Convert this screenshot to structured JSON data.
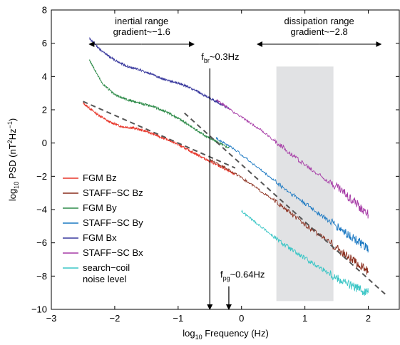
{
  "chart_data": {
    "type": "line",
    "xlabel": "log10 Frequency (Hz)",
    "ylabel": "log10 PSD (nT2Hz−1)",
    "xlim": [
      -3,
      2.5
    ],
    "ylim": [
      -10,
      8
    ],
    "x_ticks": [
      -3,
      -2,
      -1,
      0,
      1,
      2
    ],
    "y_ticks": [
      -10,
      -8,
      -6,
      -4,
      -2,
      0,
      2,
      4,
      6,
      8
    ],
    "x_tick_labels": [
      "−3",
      "−2",
      "−1",
      "0",
      "1",
      "2"
    ],
    "y_tick_labels": [
      "−10",
      "−8",
      "−6",
      "−4",
      "−2",
      "0",
      "2",
      "4",
      "6",
      "8"
    ],
    "grid": false,
    "legend_position": "lower-left",
    "series": [
      {
        "name": "FGM Bz",
        "color": "#e8362a",
        "x": [
          -2.5,
          -2.3,
          -2.1,
          -1.9,
          -1.7,
          -1.5,
          -1.3,
          -1.1,
          -0.9,
          -0.7,
          -0.5,
          -0.3,
          -0.1
        ],
        "y": [
          2.4,
          1.8,
          1.3,
          1.0,
          0.9,
          0.7,
          0.4,
          0.1,
          -0.3,
          -0.7,
          -1.1,
          -1.5,
          -1.9
        ]
      },
      {
        "name": "STAFF−SC Bz",
        "color": "#8a2d1c",
        "x": [
          -0.5,
          -0.2,
          0.2,
          0.6,
          1.0,
          1.4,
          1.7,
          2.0
        ],
        "y": [
          -1.0,
          -1.6,
          -2.6,
          -3.7,
          -4.9,
          -6.0,
          -6.9,
          -7.7
        ]
      },
      {
        "name": "FGM By",
        "color": "#2f8c4a",
        "x": [
          -2.4,
          -2.2,
          -2.0,
          -1.8,
          -1.6,
          -1.4,
          -1.2,
          -1.0,
          -0.8,
          -0.6,
          -0.4,
          -0.2
        ],
        "y": [
          5.0,
          3.6,
          2.9,
          2.6,
          2.4,
          2.2,
          1.9,
          1.5,
          1.0,
          0.5,
          0.1,
          -0.3
        ]
      },
      {
        "name": "STAFF−SC By",
        "color": "#1a78c2",
        "x": [
          -0.4,
          -0.1,
          0.3,
          0.7,
          1.1,
          1.5,
          1.8,
          2.0
        ],
        "y": [
          0.3,
          -0.4,
          -1.6,
          -2.8,
          -3.9,
          -5.0,
          -5.8,
          -6.4
        ]
      },
      {
        "name": "FGM Bx",
        "color": "#3a3a9e",
        "x": [
          -2.4,
          -2.2,
          -2.0,
          -1.8,
          -1.6,
          -1.4,
          -1.2,
          -1.0,
          -0.8,
          -0.6,
          -0.4,
          -0.2
        ],
        "y": [
          6.3,
          5.5,
          5.0,
          4.6,
          4.4,
          4.1,
          3.8,
          3.6,
          3.3,
          2.9,
          2.5,
          2.1
        ]
      },
      {
        "name": "STAFF−SC Bx",
        "color": "#a63aa6",
        "x": [
          -0.4,
          -0.1,
          0.3,
          0.7,
          1.1,
          1.5,
          1.8,
          2.0
        ],
        "y": [
          2.6,
          1.8,
          0.8,
          -0.4,
          -1.6,
          -2.6,
          -3.6,
          -4.3
        ]
      },
      {
        "name": "search−coil noise level",
        "color": "#3bc6c6",
        "x": [
          0.0,
          0.3,
          0.6,
          0.9,
          1.2,
          1.5,
          1.8,
          2.0
        ],
        "y": [
          -4.1,
          -5.0,
          -5.9,
          -6.7,
          -7.4,
          -8.1,
          -8.7,
          -9.0
        ]
      }
    ],
    "fit_lines": [
      {
        "label": "inertial range gradient~−1.6",
        "x": [
          -2.5,
          -0.1
        ],
        "y": [
          2.5,
          -1.5
        ]
      },
      {
        "label": "dissipation range gradient~−2.8",
        "x": [
          -0.9,
          2.3
        ],
        "y": [
          1.8,
          -9.2
        ]
      }
    ],
    "shaded_region": {
      "x": [
        0.55,
        1.45
      ],
      "y": [
        -9.5,
        4.6
      ],
      "color": "#e1e2e4"
    },
    "annotations": {
      "inertial": {
        "line1": "inertial range",
        "line2": "gradient~−1.6",
        "x_range": [
          -2.4,
          -0.75
        ],
        "y": 6.2
      },
      "dissipation": {
        "line1": "dissipation range",
        "line2": "gradient~−2.8",
        "x_range": [
          0.25,
          2.2
        ],
        "y": 6.2
      },
      "fbr": {
        "prefix": "f",
        "sub": "br",
        "suffix": "~0.3Hz",
        "x": -0.5,
        "y_top": 5.0,
        "y_bottom": -10
      },
      "fpg": {
        "prefix": "f",
        "sub": "pg",
        "suffix": "~0.64Hz",
        "x": -0.2,
        "y_top": -8.1,
        "y_bottom": -10
      }
    }
  }
}
